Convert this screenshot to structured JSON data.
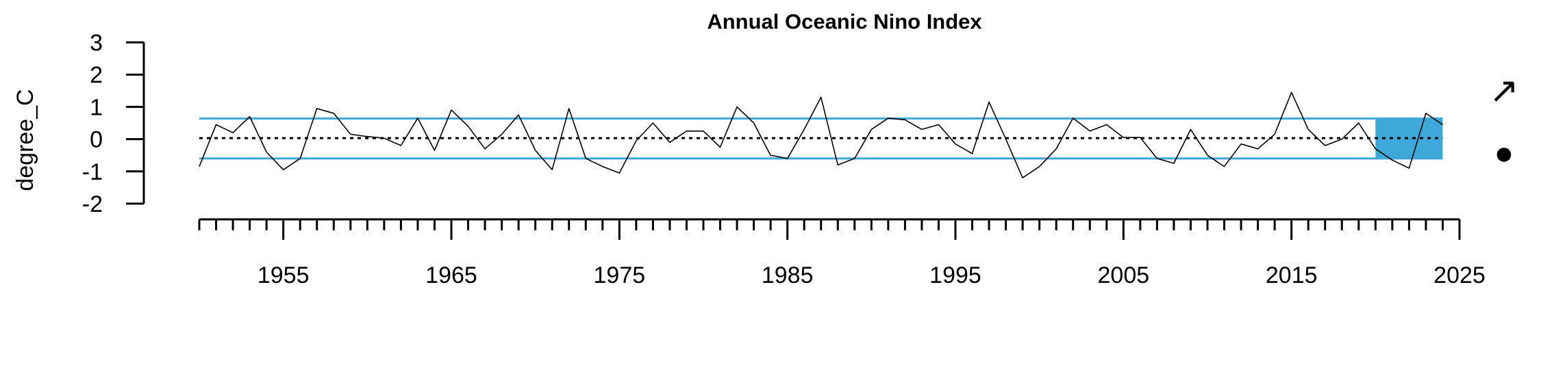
{
  "chart_data": {
    "type": "line",
    "title": "Annual Oceanic Nino Index",
    "xlabel": "",
    "ylabel": "degree_C",
    "xlim": [
      1950,
      2025
    ],
    "ylim": [
      -2,
      3
    ],
    "x_ticks": [
      1955,
      1965,
      1975,
      1985,
      1995,
      2005,
      2015,
      2025
    ],
    "y_ticks": [
      3,
      2,
      1,
      0,
      -1,
      -2
    ],
    "x_minor_ticks_every": 1,
    "grid": false,
    "x": [
      1950,
      1951,
      1952,
      1953,
      1954,
      1955,
      1956,
      1957,
      1958,
      1959,
      1960,
      1961,
      1962,
      1963,
      1964,
      1965,
      1966,
      1967,
      1968,
      1969,
      1970,
      1971,
      1972,
      1973,
      1974,
      1975,
      1976,
      1977,
      1978,
      1979,
      1980,
      1981,
      1982,
      1983,
      1984,
      1985,
      1986,
      1987,
      1988,
      1989,
      1990,
      1991,
      1992,
      1993,
      1994,
      1995,
      1996,
      1997,
      1998,
      1999,
      2000,
      2001,
      2002,
      2003,
      2004,
      2005,
      2006,
      2007,
      2008,
      2009,
      2010,
      2011,
      2012,
      2013,
      2014,
      2015,
      2016,
      2017,
      2018,
      2019,
      2020,
      2021,
      2022,
      2023,
      2024
    ],
    "values": [
      -0.85,
      0.45,
      0.2,
      0.7,
      -0.4,
      -0.95,
      -0.6,
      0.95,
      0.8,
      0.15,
      0.08,
      0.03,
      -0.2,
      0.65,
      -0.35,
      0.9,
      0.4,
      -0.3,
      0.15,
      0.75,
      -0.35,
      -0.95,
      0.95,
      -0.6,
      -0.85,
      -1.05,
      -0.05,
      0.5,
      -0.1,
      0.25,
      0.25,
      -0.25,
      1.0,
      0.5,
      -0.5,
      -0.6,
      0.3,
      1.3,
      -0.8,
      -0.6,
      0.3,
      0.65,
      0.6,
      0.3,
      0.45,
      -0.15,
      -0.45,
      1.15,
      0.0,
      -1.2,
      -0.85,
      -0.3,
      0.65,
      0.25,
      0.45,
      0.05,
      0.05,
      -0.6,
      -0.75,
      0.3,
      -0.5,
      -0.85,
      -0.15,
      -0.3,
      0.15,
      1.45,
      0.3,
      -0.2,
      0.0,
      0.5,
      -0.3,
      -0.65,
      -0.9,
      0.8,
      0.45
    ],
    "mean": 0.03,
    "upper_band": 0.64,
    "lower_band": -0.6,
    "recent_window": [
      2020,
      2024
    ],
    "trend_symbol": "↗",
    "status_symbol": "●",
    "colors": {
      "line": "#000000",
      "band": "#3ea8d8",
      "recent_fill": "#3ea8d8",
      "mean_line": "#000000"
    }
  }
}
